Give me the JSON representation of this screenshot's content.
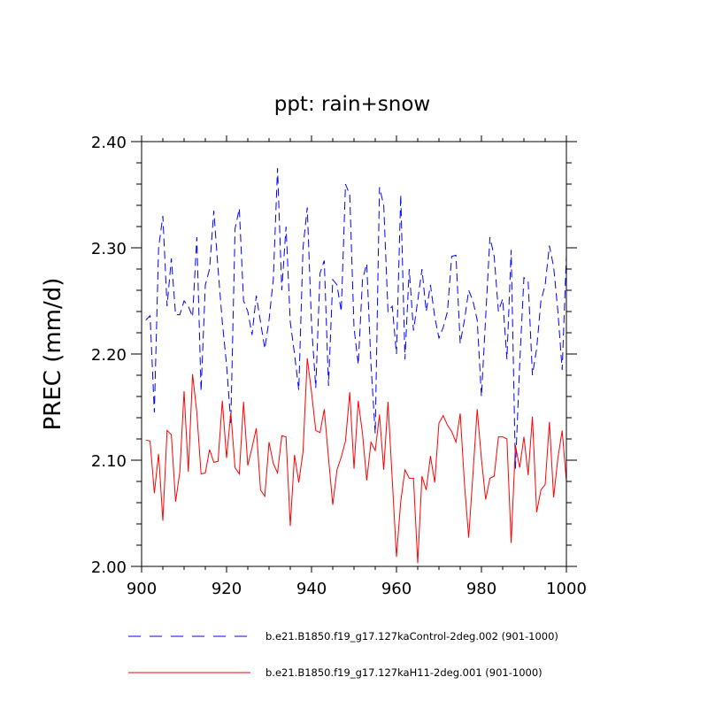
{
  "chart_data": {
    "type": "line",
    "title": "ppt: rain+snow",
    "xlabel": "",
    "ylabel": "PREC  (mm/d)",
    "xlim": [
      900,
      1000
    ],
    "ylim": [
      2.0,
      2.4
    ],
    "x_ticks": [
      900,
      920,
      940,
      960,
      980,
      1000
    ],
    "x_tick_labels": [
      "900",
      "920",
      "940",
      "960",
      "980",
      "1000"
    ],
    "y_ticks": [
      2.0,
      2.1,
      2.2,
      2.3,
      2.4
    ],
    "y_tick_labels": [
      "2.00",
      "2.10",
      "2.20",
      "2.30",
      "2.40"
    ],
    "grid": false,
    "legend_position": "bottom",
    "x": [
      901,
      902,
      903,
      904,
      905,
      906,
      907,
      908,
      909,
      910,
      911,
      912,
      913,
      914,
      915,
      916,
      917,
      918,
      919,
      920,
      921,
      922,
      923,
      924,
      925,
      926,
      927,
      928,
      929,
      930,
      931,
      932,
      933,
      934,
      935,
      936,
      937,
      938,
      939,
      940,
      941,
      942,
      943,
      944,
      945,
      946,
      947,
      948,
      949,
      950,
      951,
      952,
      953,
      954,
      955,
      956,
      957,
      958,
      959,
      960,
      961,
      962,
      963,
      964,
      965,
      966,
      967,
      968,
      969,
      970,
      971,
      972,
      973,
      974,
      975,
      976,
      977,
      978,
      979,
      980,
      981,
      982,
      983,
      984,
      985,
      986,
      987,
      988,
      989,
      990,
      991,
      992,
      993,
      994,
      995,
      996,
      997,
      998,
      999,
      1000
    ],
    "series": [
      {
        "name": "b.e21.B1850.f19_g17.127kaControl-2deg.002 (901-1000)",
        "color": "#0000ff",
        "style": "dashed",
        "values": [
          2.232,
          2.236,
          2.145,
          2.3,
          2.33,
          2.245,
          2.29,
          2.237,
          2.237,
          2.25,
          2.245,
          2.235,
          2.31,
          2.165,
          2.265,
          2.28,
          2.335,
          2.28,
          2.23,
          2.19,
          2.135,
          2.318,
          2.337,
          2.25,
          2.24,
          2.218,
          2.255,
          2.23,
          2.205,
          2.232,
          2.27,
          2.375,
          2.26,
          2.32,
          2.23,
          2.2,
          2.166,
          2.3,
          2.338,
          2.228,
          2.168,
          2.276,
          2.288,
          2.17,
          2.27,
          2.265,
          2.24,
          2.36,
          2.35,
          2.225,
          2.19,
          2.27,
          2.285,
          2.19,
          2.125,
          2.357,
          2.34,
          2.24,
          2.245,
          2.2,
          2.35,
          2.195,
          2.28,
          2.222,
          2.25,
          2.28,
          2.24,
          2.265,
          2.235,
          2.215,
          2.225,
          2.24,
          2.292,
          2.293,
          2.21,
          2.232,
          2.26,
          2.25,
          2.232,
          2.16,
          2.235,
          2.31,
          2.292,
          2.24,
          2.252,
          2.195,
          2.298,
          2.092,
          2.19,
          2.272,
          2.268,
          2.18,
          2.205,
          2.25,
          2.265,
          2.302,
          2.282,
          2.24,
          2.185,
          2.293
        ]
      },
      {
        "name": "b.e21.B1850.f19_g17.127kaH11-2deg.001 (901-1000)",
        "color": "#ff0000",
        "style": "solid",
        "values": [
          2.119,
          2.118,
          2.069,
          2.106,
          2.043,
          2.128,
          2.124,
          2.061,
          2.089,
          2.165,
          2.089,
          2.181,
          2.145,
          2.087,
          2.088,
          2.11,
          2.098,
          2.099,
          2.156,
          2.102,
          2.145,
          2.093,
          2.087,
          2.155,
          2.095,
          2.112,
          2.13,
          2.072,
          2.066,
          2.117,
          2.097,
          2.088,
          2.123,
          2.122,
          2.038,
          2.105,
          2.079,
          2.108,
          2.196,
          2.164,
          2.128,
          2.126,
          2.148,
          2.102,
          2.058,
          2.091,
          2.103,
          2.118,
          2.164,
          2.092,
          2.156,
          2.125,
          2.081,
          2.117,
          2.109,
          2.143,
          2.091,
          2.155,
          2.082,
          2.009,
          2.061,
          2.091,
          2.083,
          2.083,
          2.003,
          2.085,
          2.072,
          2.104,
          2.079,
          2.135,
          2.142,
          2.133,
          2.127,
          2.117,
          2.144,
          2.078,
          2.027,
          2.087,
          2.148,
          2.101,
          2.063,
          2.083,
          2.085,
          2.122,
          2.122,
          2.12,
          2.022,
          2.114,
          2.093,
          2.122,
          2.086,
          2.141,
          2.051,
          2.072,
          2.077,
          2.136,
          2.065,
          2.102,
          2.128,
          2.08
        ]
      }
    ]
  }
}
